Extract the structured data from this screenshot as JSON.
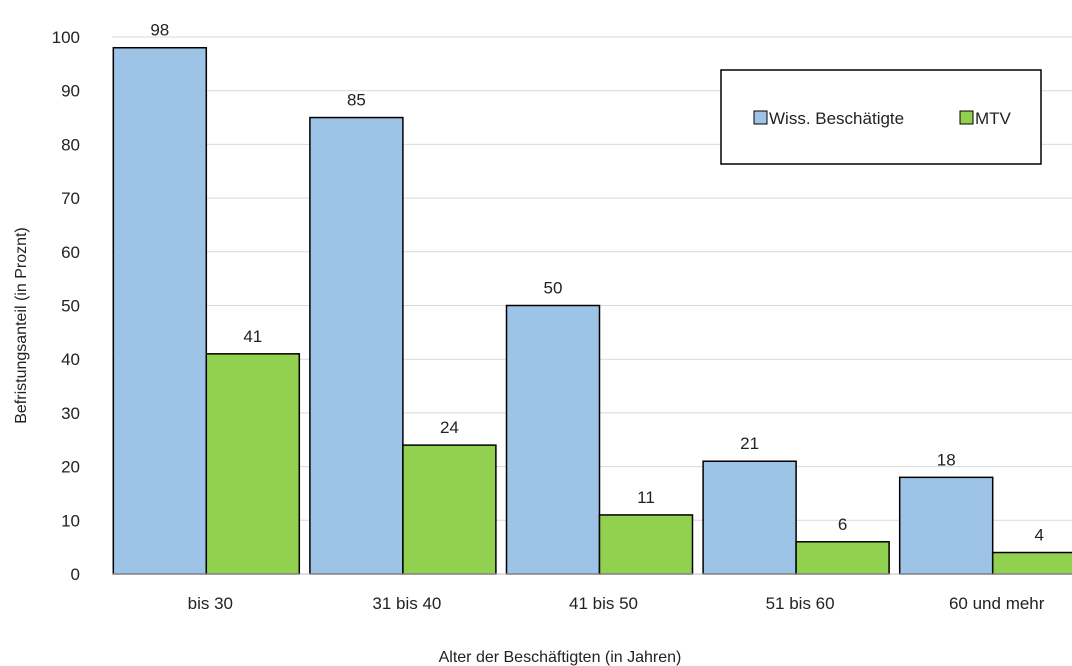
{
  "chart_data": {
    "type": "bar",
    "categories": [
      "bis 30",
      "31 bis 40",
      "41 bis 50",
      "51 bis 60",
      "60 und mehr"
    ],
    "series": [
      {
        "name": "Wiss. Beschätigte",
        "values": [
          98,
          85,
          50,
          21,
          18
        ],
        "color": "#9DC3E6"
      },
      {
        "name": "MTV",
        "values": [
          41,
          24,
          11,
          6,
          4
        ],
        "color": "#92D050"
      }
    ],
    "xlabel": "Alter der Beschäftigten (in Jahren)",
    "ylabel": "Befristungsanteil (in Proznt)",
    "ylim": [
      0,
      100
    ],
    "yticks": [
      0,
      10,
      20,
      30,
      40,
      50,
      60,
      70,
      80,
      90,
      100
    ],
    "grid": true,
    "legend_position": "top-right",
    "data_labels": true
  }
}
